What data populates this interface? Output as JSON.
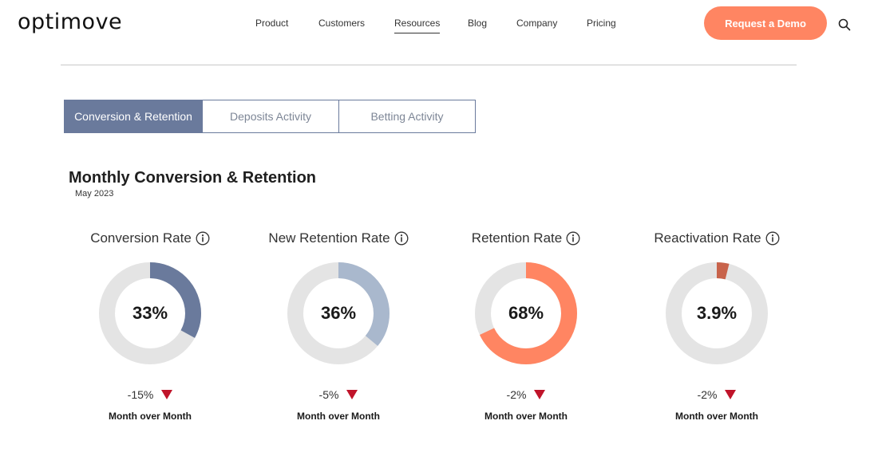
{
  "header": {
    "logo": "optimove",
    "nav": [
      "Product",
      "Customers",
      "Resources",
      "Blog",
      "Company",
      "Pricing"
    ],
    "active_nav": "Resources",
    "demo_label": "Request a Demo",
    "search_icon": "search-icon"
  },
  "tabs": [
    {
      "label": "Conversion & Retention",
      "active": true
    },
    {
      "label": "Deposits Activity",
      "active": false
    },
    {
      "label": "Betting Activity",
      "active": false
    }
  ],
  "section": {
    "title": "Monthly Conversion & Retention",
    "date": "May 2023"
  },
  "colors": {
    "accent": "#ff8562",
    "tab_active": "#6a7a9c",
    "track": "#e4e4e4",
    "down": "#c0142a"
  },
  "metrics": [
    {
      "title": "Conversion Rate",
      "value_label": "33%",
      "value": 33,
      "color": "#6a7a9c",
      "change": "-15%",
      "period": "Month over Month"
    },
    {
      "title": "New Retention Rate",
      "value_label": "36%",
      "value": 36,
      "color": "#a9b8cd",
      "change": "-5%",
      "period": "Month over Month"
    },
    {
      "title": "Retention Rate",
      "value_label": "68%",
      "value": 68,
      "color": "#ff8562",
      "change": "-2%",
      "period": "Month over Month"
    },
    {
      "title": "Reactivation Rate",
      "value_label": "3.9%",
      "value": 3.9,
      "color": "#c8634b",
      "change": "-2%",
      "period": "Month over Month"
    }
  ]
}
